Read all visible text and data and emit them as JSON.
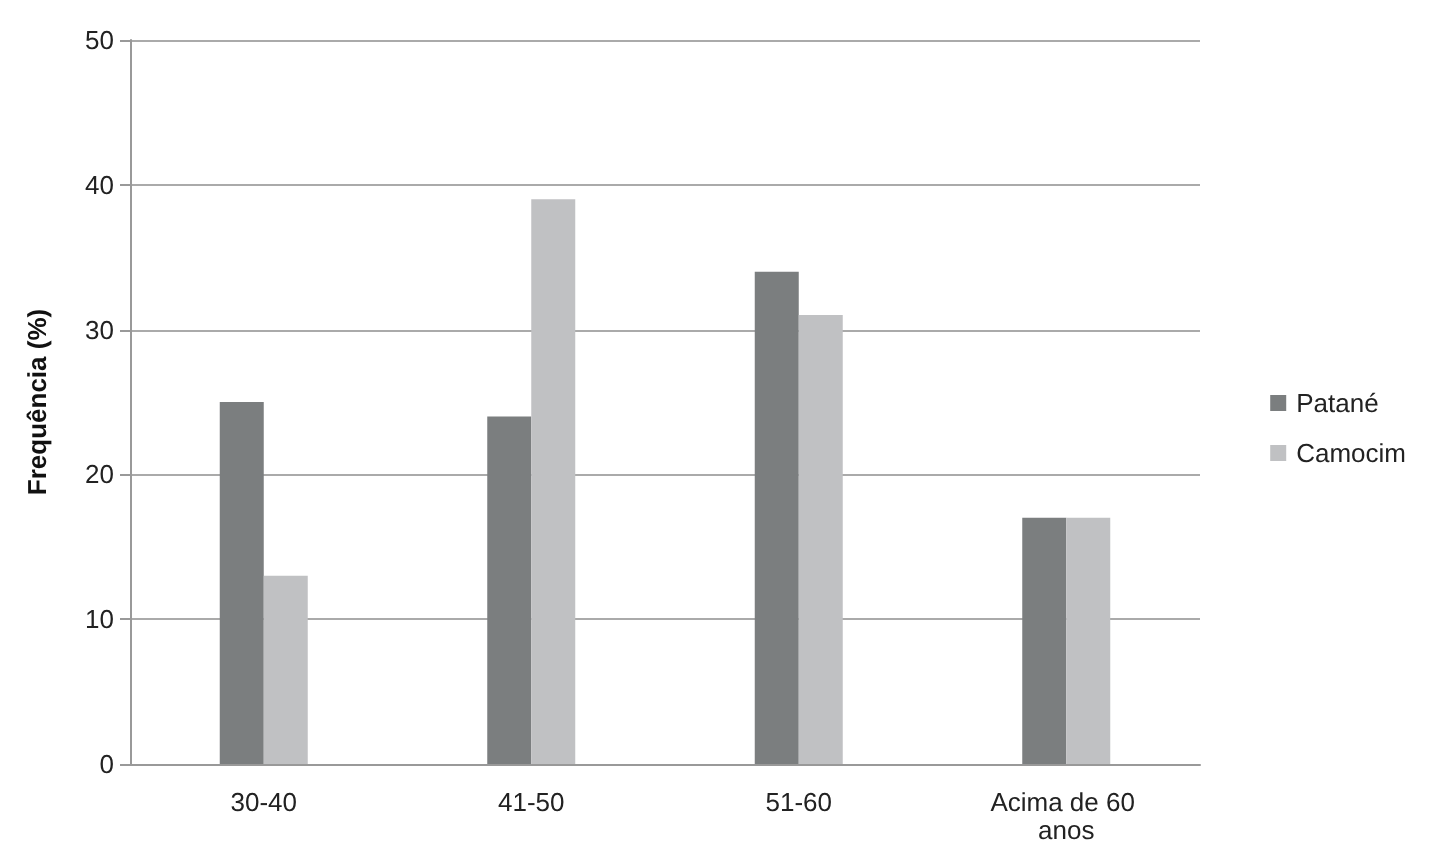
{
  "chart_data": {
    "type": "bar",
    "ylabel": "Frequência (%)",
    "categories": [
      "30-40",
      "41-50",
      "51-60",
      "Acima de 60 anos"
    ],
    "series": [
      {
        "name": "Patané",
        "color": "#7b7e7f",
        "values": [
          25,
          24,
          34,
          17
        ]
      },
      {
        "name": "Camocim",
        "color": "#c0c1c3",
        "values": [
          13,
          39,
          31,
          17
        ]
      }
    ],
    "ylim": [
      0,
      50
    ],
    "yticks": [
      0,
      10,
      20,
      30,
      40,
      50
    ],
    "grid": "y",
    "legend": "right"
  }
}
